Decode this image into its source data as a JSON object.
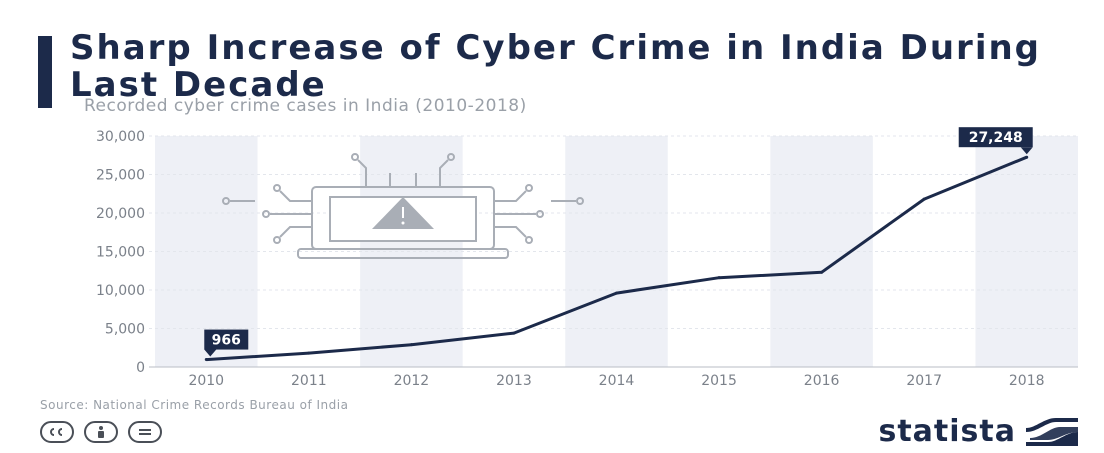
{
  "header": {
    "title": "Sharp Increase of Cyber Crime in India During Last Decade",
    "subtitle": "Recorded cyber crime cases in India (2010-2018)"
  },
  "footer": {
    "source": "Source: National Crime Records Bureau of India",
    "brand": "statista",
    "license_icons": [
      "cc-icon",
      "attribution-icon",
      "no-derivatives-icon"
    ]
  },
  "colors": {
    "line": "#1c2a4a",
    "band": "#eef0f6",
    "text": "#1c2a4a",
    "muted": "#9aa0a8"
  },
  "chart_data": {
    "type": "line",
    "title": "Sharp Increase of Cyber Crime in India During Last Decade",
    "subtitle": "Recorded cyber crime cases in India (2010-2018)",
    "x": [
      "2010",
      "2011",
      "2012",
      "2013",
      "2014",
      "2015",
      "2016",
      "2017",
      "2018"
    ],
    "series": [
      {
        "values": [
          966,
          1800,
          2900,
          4400,
          9600,
          11600,
          12300,
          21800,
          27248
        ]
      }
    ],
    "ylim": [
      0,
      30000
    ],
    "yticks": [
      0,
      5000,
      10000,
      15000,
      20000,
      25000,
      30000
    ],
    "ytick_labels": [
      "0",
      "5,000",
      "10,000",
      "15,000",
      "20,000",
      "25,000",
      "30,000"
    ],
    "data_labels": [
      {
        "index": 0,
        "text": "966"
      },
      {
        "index": 8,
        "text": "27,248"
      }
    ],
    "grid": true,
    "legend": "none",
    "decoration": "circuit-laptop-warning-icon"
  }
}
